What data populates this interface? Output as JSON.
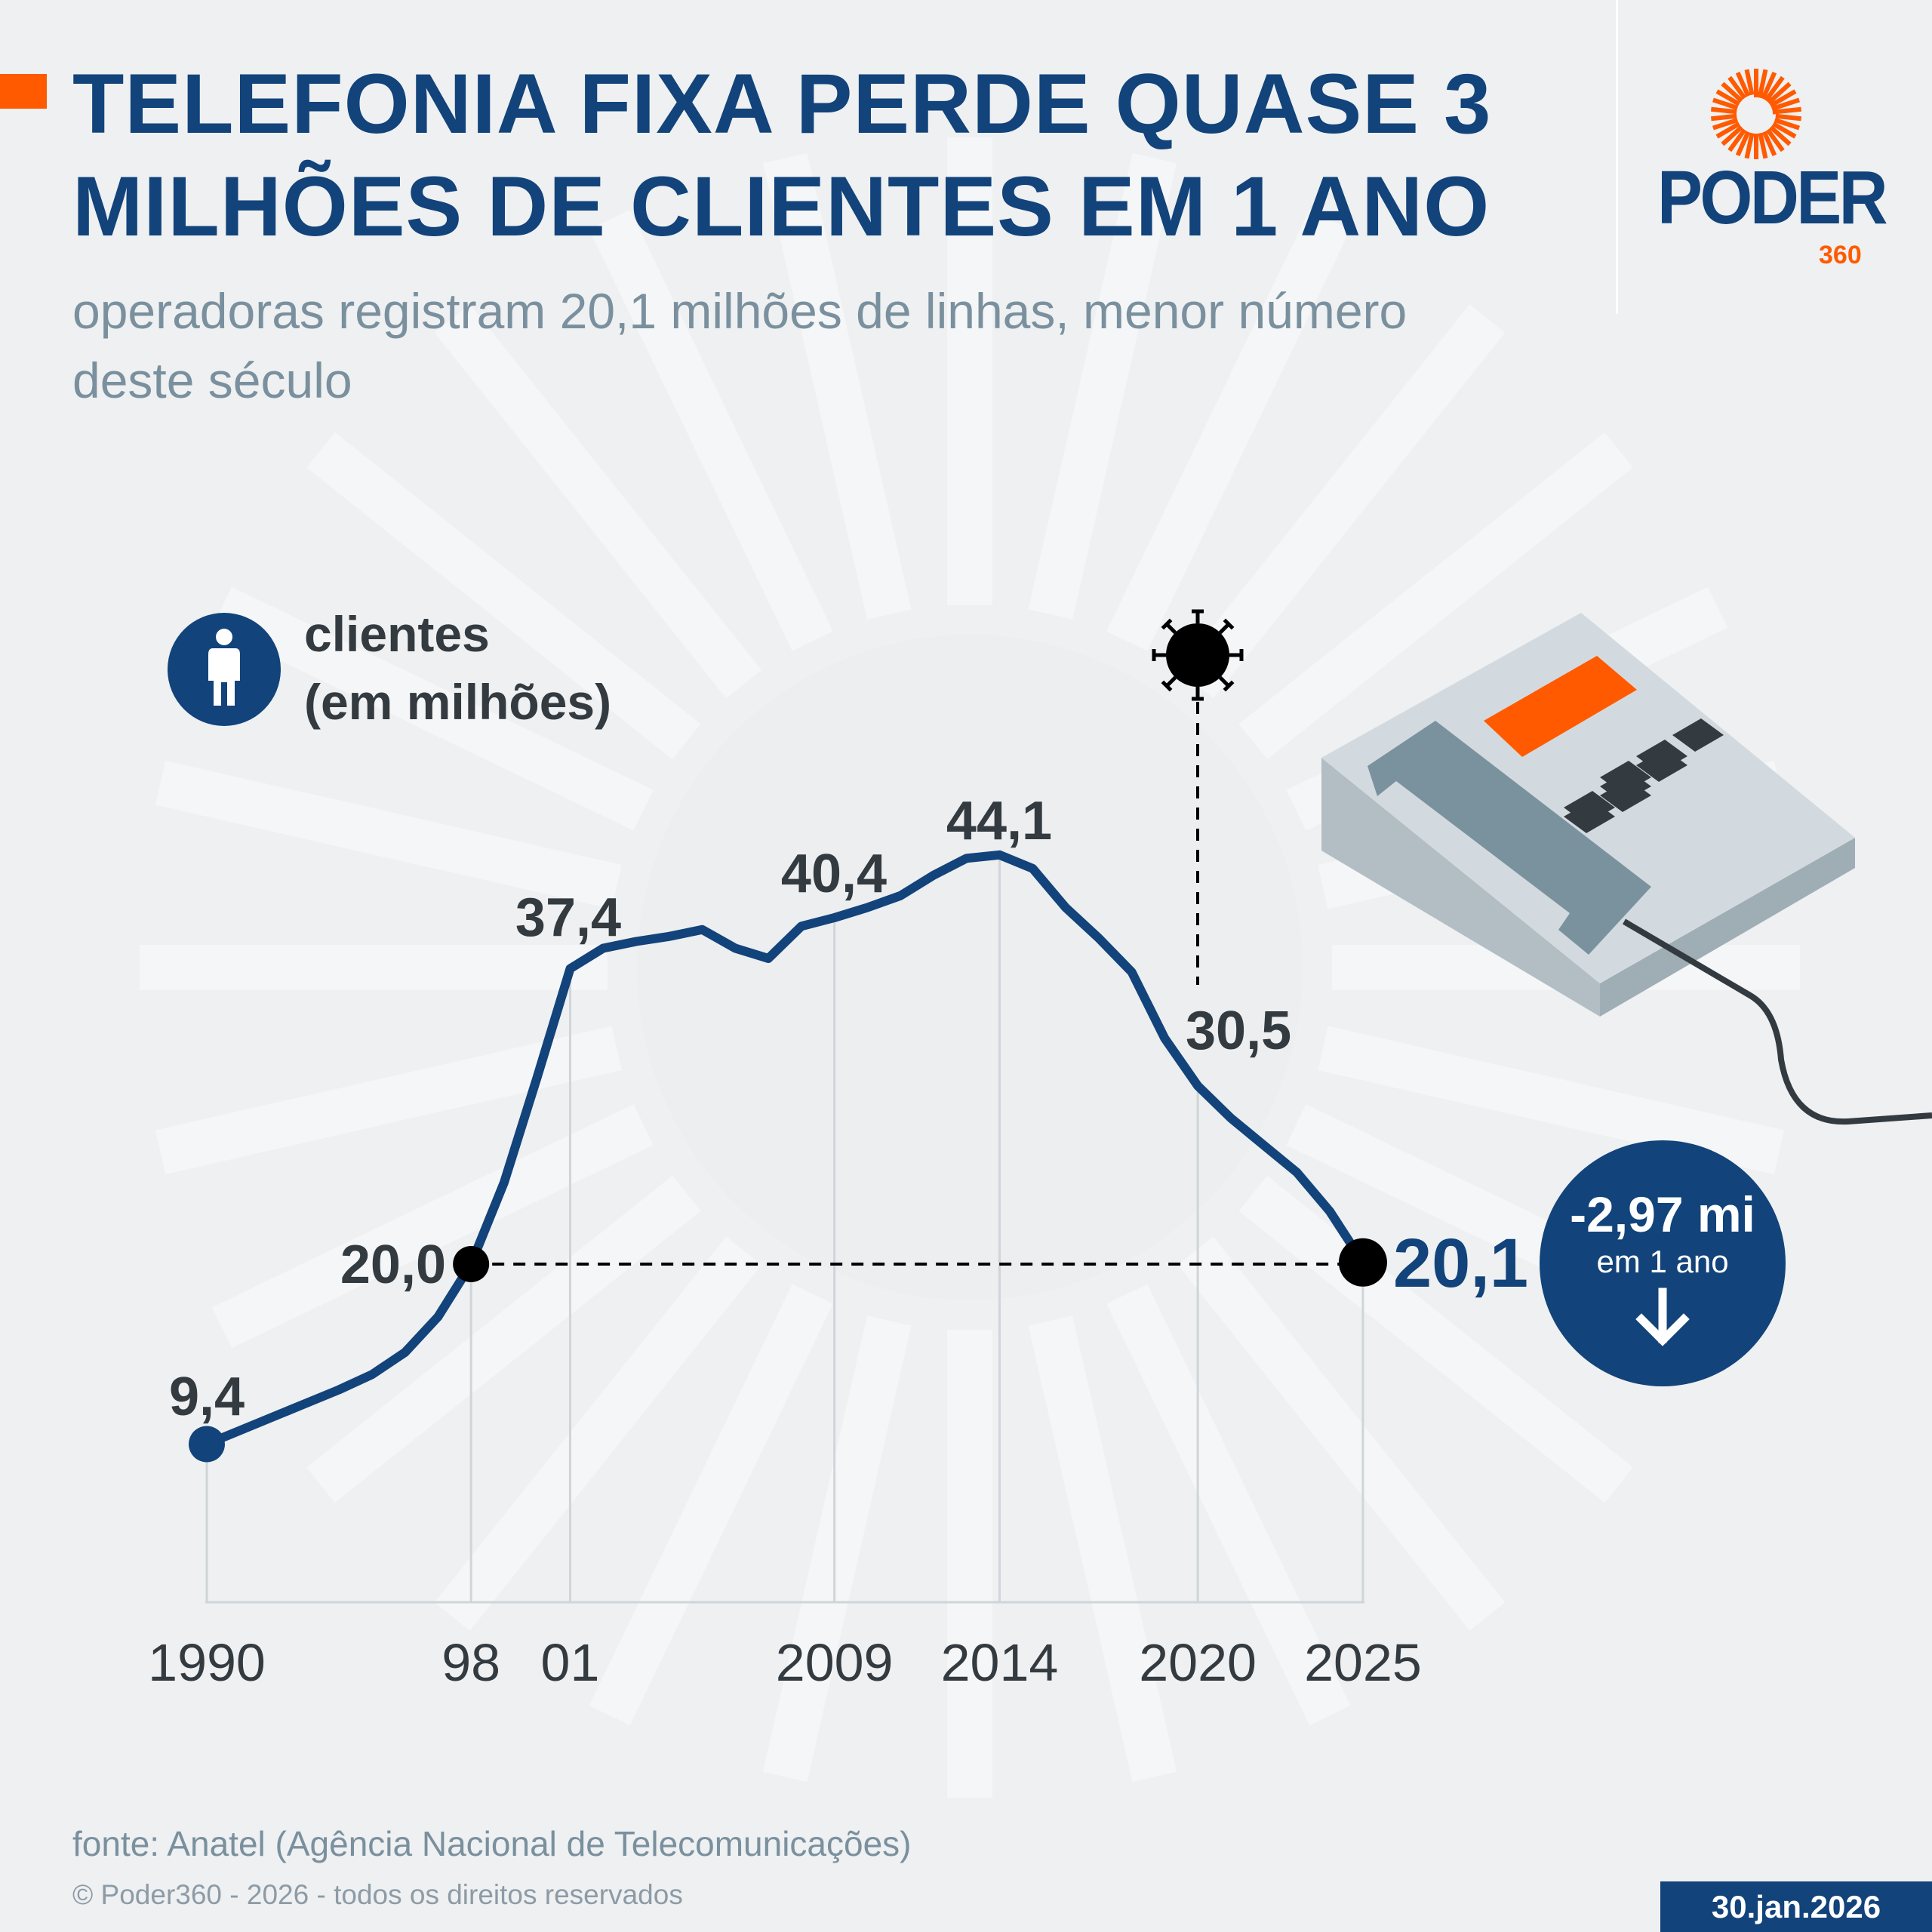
{
  "header": {
    "title": "TELEFONIA FIXA PERDE QUASE 3 MILHÕES DE CLIENTES EM 1 ANO",
    "subtitle": "operadoras registram 20,1 milhões de linhas, menor número deste século"
  },
  "logo": {
    "word": "PODER",
    "number": "360"
  },
  "legend": {
    "icon": "person-icon",
    "line1": "clientes",
    "line2": "(em milhões)"
  },
  "annotation_icon": "virus-icon",
  "badge": {
    "value": "-2,97 mi",
    "caption": "em 1 ano",
    "icon": "arrow-down-icon"
  },
  "colors": {
    "line": "#12437a",
    "accent": "#ff5a00",
    "title": "#12437a",
    "subtitle": "#7a909e",
    "marker": "#000000"
  },
  "chart_data": {
    "type": "line",
    "ylabel": "clientes (em milhões)",
    "x": [
      1990,
      1991,
      1992,
      1993,
      1994,
      1995,
      1996,
      1997,
      1998,
      1999,
      2000,
      2001,
      2002,
      2003,
      2004,
      2005,
      2006,
      2007,
      2008,
      2009,
      2010,
      2011,
      2012,
      2013,
      2014,
      2015,
      2016,
      2017,
      2018,
      2019,
      2020,
      2021,
      2022,
      2023,
      2024,
      2025
    ],
    "values": [
      9.4,
      10.2,
      11.0,
      11.8,
      12.6,
      13.5,
      14.8,
      16.9,
      20.0,
      24.8,
      31.0,
      37.4,
      38.6,
      39.0,
      39.3,
      39.7,
      38.6,
      38.0,
      39.9,
      40.4,
      41.0,
      41.7,
      42.9,
      43.9,
      44.1,
      43.3,
      41.0,
      39.2,
      37.2,
      33.3,
      30.5,
      28.6,
      27.0,
      25.4,
      23.1,
      20.1
    ],
    "tick_labels": [
      {
        "year": 1990,
        "label": "1990"
      },
      {
        "year": 1998,
        "label": "98"
      },
      {
        "year": 2001,
        "label": "01"
      },
      {
        "year": 2009,
        "label": "2009"
      },
      {
        "year": 2014,
        "label": "2014"
      },
      {
        "year": 2020,
        "label": "2020"
      },
      {
        "year": 2025,
        "label": "2025"
      }
    ],
    "data_labels": [
      {
        "year": 1990,
        "label": "9,4"
      },
      {
        "year": 1998,
        "label": "20,0"
      },
      {
        "year": 2001,
        "label": "37,4"
      },
      {
        "year": 2009,
        "label": "40,4"
      },
      {
        "year": 2014,
        "label": "44,1"
      },
      {
        "year": 2020,
        "label": "30,5"
      },
      {
        "year": 2025,
        "label": "20,1"
      }
    ],
    "xlim": [
      1990,
      2025
    ],
    "grid": false
  },
  "footer": {
    "source": "fonte: Anatel (Agência Nacional de Telecomunicações)",
    "copyright": "© Poder360 - 2026 - todos os direitos reservados",
    "date": "30.jan.2026"
  }
}
